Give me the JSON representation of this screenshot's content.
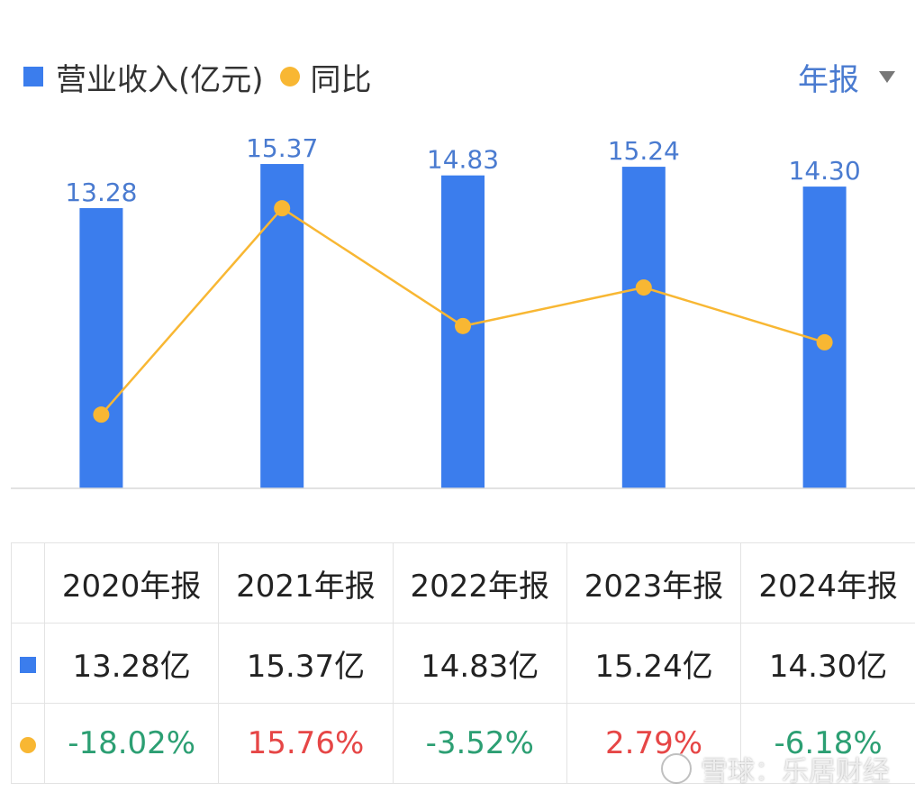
{
  "legend": {
    "revenue_label": "营业收入(亿元)",
    "yoy_label": "同比"
  },
  "period_selector": {
    "label": "年报"
  },
  "colors": {
    "bar": "#3b7ded",
    "line": "#f8b733",
    "positive": "#e64646",
    "negative": "#2c9f73"
  },
  "chart_data": {
    "type": "bar",
    "categories": [
      "2020年报",
      "2021年报",
      "2022年报",
      "2023年报",
      "2024年报"
    ],
    "series": [
      {
        "name": "营业收入(亿元)",
        "type": "bar",
        "values": [
          13.28,
          15.37,
          14.83,
          15.24,
          14.3
        ]
      },
      {
        "name": "同比",
        "type": "line",
        "values": [
          -18.02,
          15.76,
          -3.52,
          2.79,
          -6.18
        ]
      }
    ],
    "bar_labels": [
      "13.28",
      "15.37",
      "14.83",
      "15.24",
      "14.30"
    ],
    "legend_position": "top-left",
    "grid": false
  },
  "table": {
    "headers": [
      "2020年报",
      "2021年报",
      "2022年报",
      "2023年报",
      "2024年报"
    ],
    "revenue_row": [
      "13.28亿",
      "15.37亿",
      "14.83亿",
      "15.24亿",
      "14.30亿"
    ],
    "yoy_row": [
      "-18.02%",
      "15.76%",
      "-3.52%",
      "2.79%",
      "-6.18%"
    ]
  },
  "watermark": {
    "text": "雪球：乐居财经"
  }
}
